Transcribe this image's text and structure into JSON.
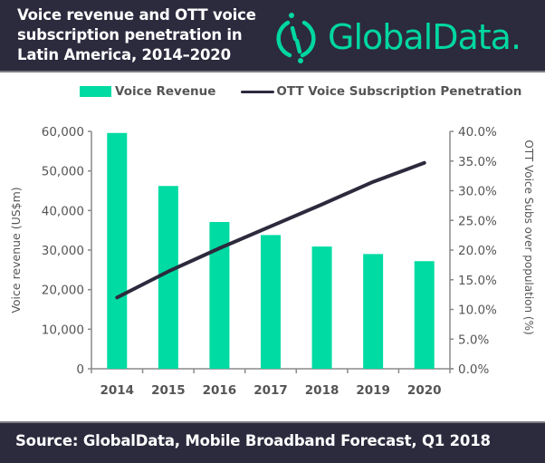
{
  "header": {
    "title": "Voice revenue and OTT voice subscription penetration in Latin America, 2014–2020",
    "logo_text": "GlobalData.",
    "logo_icon": "globaldata-logo-icon"
  },
  "footer": {
    "source": "Source: GlobalData, Mobile Broadband Forecast, Q1 2018"
  },
  "colors": {
    "bar": "#00dba3",
    "line": "#2c2a3d",
    "header_bg": "#2c2a3d",
    "logo": "#00d7a0",
    "axis": "#8a8a8a",
    "tick_text": "#555555"
  },
  "chart_data": {
    "type": "bar",
    "title": "Voice revenue and OTT voice subscription penetration in Latin America, 2014–2020",
    "categories": [
      "2014",
      "2015",
      "2016",
      "2017",
      "2018",
      "2019",
      "2020"
    ],
    "series": [
      {
        "name": "Voice Revenue",
        "type": "bar",
        "axis": "left",
        "values": [
          59600,
          46200,
          37100,
          33800,
          30900,
          29000,
          27200
        ]
      },
      {
        "name": "OTT Voice Subscription Penetration",
        "type": "line",
        "axis": "right",
        "values": [
          12.0,
          16.4,
          20.3,
          24.0,
          27.7,
          31.5,
          34.7
        ]
      }
    ],
    "ylabel": "Voice revenue (US$m)",
    "ylabel_right": "OTT Voice Subs over population (%)",
    "xlabel": "",
    "ylim": [
      0,
      60000
    ],
    "ylim_right": [
      0,
      40
    ],
    "yticks": [
      "0",
      "10,000",
      "20,000",
      "30,000",
      "40,000",
      "50,000",
      "60,000"
    ],
    "yticks_right": [
      "0.0%",
      "5.0%",
      "10.0%",
      "15.0%",
      "20.0%",
      "25.0%",
      "30.0%",
      "35.0%",
      "40.0%"
    ],
    "legend": [
      "Voice Revenue",
      "OTT Voice Subscription Penetration"
    ],
    "legend_position": "top",
    "grid": false
  }
}
